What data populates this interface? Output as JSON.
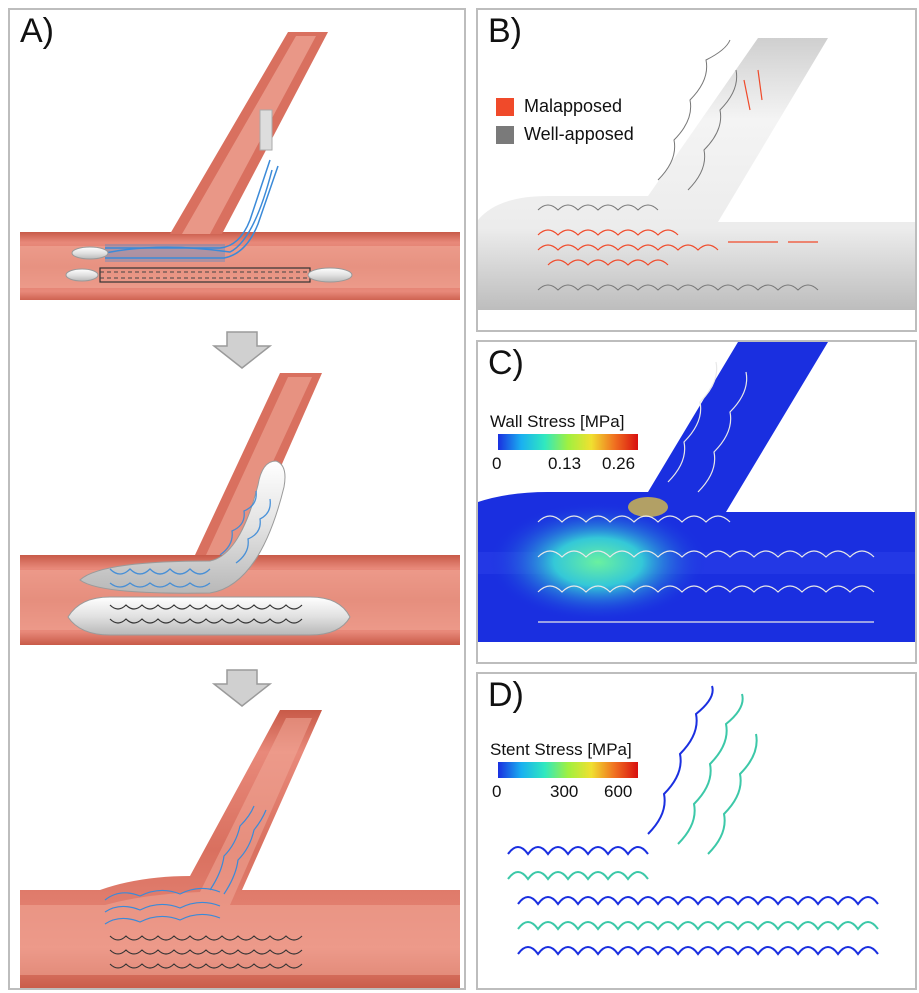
{
  "panels": {
    "a": {
      "label": "A)"
    },
    "b": {
      "label": "B)",
      "legend": [
        {
          "label": "Malapposed",
          "color": "#f04a2a"
        },
        {
          "label": "Well-apposed",
          "color": "#7a7a7a"
        }
      ]
    },
    "c": {
      "label": "C)",
      "colorbar": {
        "title": "Wall Stress [MPa]",
        "ticks": [
          "0",
          "0.13",
          "0.26"
        ]
      }
    },
    "d": {
      "label": "D)",
      "colorbar": {
        "title": "Stent Stress [MPa]",
        "ticks": [
          "0",
          "300",
          "600"
        ]
      }
    }
  },
  "colors": {
    "vessel": "#e07a68",
    "vessel_dark": "#b9493b",
    "vessel_light": "#f2a898",
    "stent_blue": "#3b8ad8",
    "stent_dark": "#333333",
    "balloon": "#e6e6e6",
    "stress_bg": "#1a2fe0",
    "arrow": "#c8c8c8"
  }
}
